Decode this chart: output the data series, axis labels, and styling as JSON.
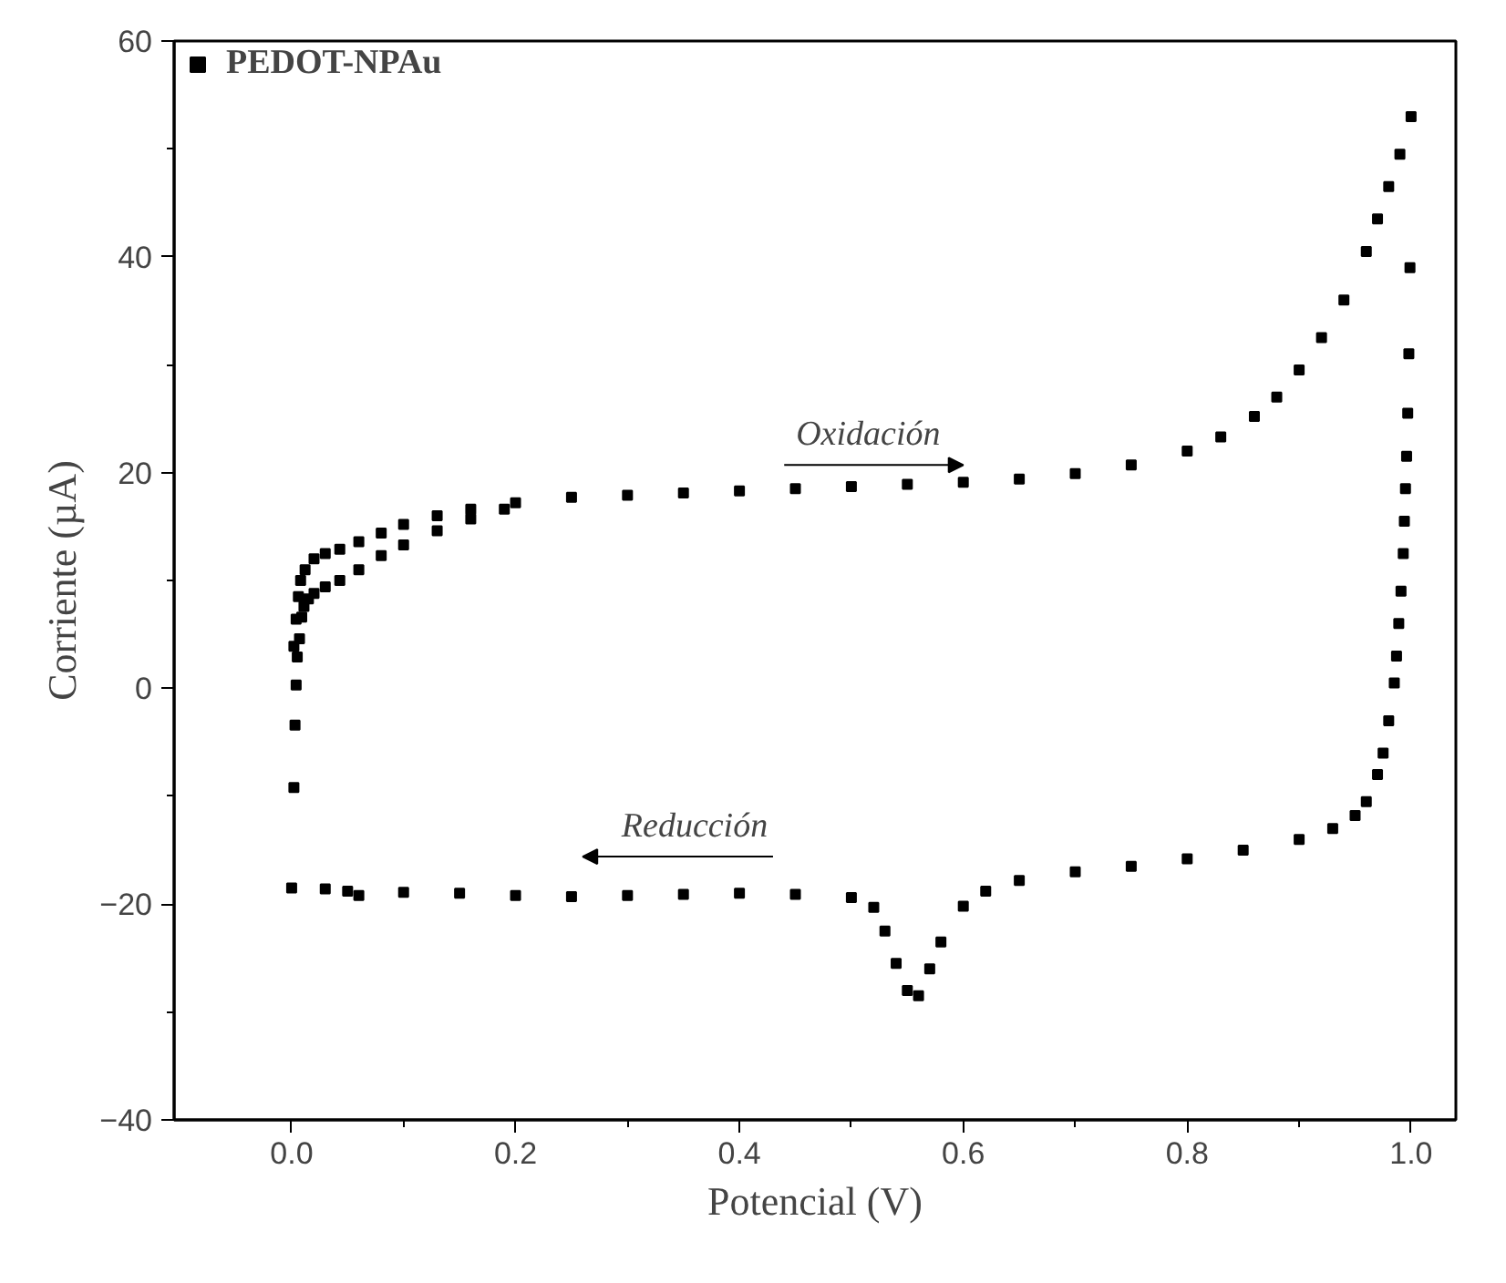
{
  "chart_data": {
    "type": "scatter",
    "xlabel": "Potencial (V)",
    "ylabel": "Corriente (µA)",
    "xlim": [
      -0.105,
      1.04
    ],
    "ylim": [
      -40,
      60
    ],
    "xticks": [
      {
        "value": 0,
        "label": "0.0"
      },
      {
        "value": 0.2,
        "label": "0.2"
      },
      {
        "value": 0.4,
        "label": "0.4"
      },
      {
        "value": 0.6,
        "label": "0.6"
      },
      {
        "value": 0.8,
        "label": "0.8"
      },
      {
        "value": 1,
        "label": "1.0"
      }
    ],
    "yticks": [
      -40,
      -20,
      0,
      20,
      40,
      60
    ],
    "grid": false,
    "legend": "top left",
    "marker": "square",
    "annotations": [
      "Oxidación",
      "Reducción"
    ],
    "series": [
      {
        "name": "PEDOT-NPAu",
        "color": "#000000",
        "x": [
          0.002,
          0.003,
          0.004,
          0.002,
          0.004,
          0.006,
          0.008,
          0.012,
          0.02,
          0.03,
          0.043,
          0.06,
          0.08,
          0.1,
          0.13,
          0.16,
          0.2,
          0.25,
          0.3,
          0.35,
          0.4,
          0.45,
          0.5,
          0.55,
          0.6,
          0.65,
          0.7,
          0.75,
          0.8,
          0.83,
          0.86,
          0.88,
          0.9,
          0.92,
          0.94,
          0.96,
          0.97,
          0.98,
          0.99,
          1.0,
          0.005,
          0.007,
          0.009,
          0.011,
          0.015,
          0.02,
          0.03,
          0.043,
          0.06,
          0.08,
          0.1,
          0.13,
          0.16,
          0.19,
          0.999,
          0.998,
          0.997,
          0.996,
          0.995,
          0.994,
          0.993,
          0.991,
          0.989,
          0.987,
          0.985,
          0.98,
          0.975,
          0.97,
          0.96,
          0.95,
          0.93,
          0.9,
          0.85,
          0.8,
          0.75,
          0.7,
          0.65,
          0.62,
          0.6,
          0.58,
          0.57,
          0.56,
          0.55,
          0.54,
          0.53,
          0.52,
          0.5,
          0.45,
          0.4,
          0.35,
          0.3,
          0.25,
          0.2,
          0.15,
          0.1,
          0.06,
          0.05,
          0.03,
          0.0
        ],
        "values": [
          -9.2,
          -3.4,
          0.3,
          3.9,
          6.4,
          8.5,
          10,
          11,
          12,
          12.5,
          12.9,
          13.6,
          14.4,
          15.2,
          16,
          16.6,
          17.2,
          17.7,
          17.9,
          18.1,
          18.3,
          18.5,
          18.7,
          18.9,
          19.1,
          19.4,
          19.9,
          20.7,
          22,
          23.3,
          25.2,
          27,
          29.5,
          32.5,
          36,
          40.5,
          43.5,
          46.5,
          49.5,
          53,
          2.9,
          4.6,
          6.6,
          7.6,
          8.3,
          8.8,
          9.4,
          10,
          11,
          12.3,
          13.3,
          14.6,
          15.7,
          16.6,
          39,
          31,
          25.5,
          21.5,
          18.5,
          15.5,
          12.5,
          9,
          6,
          3,
          0.5,
          -3,
          -6,
          -8,
          -10.5,
          -11.8,
          -13,
          -14,
          -15,
          -15.8,
          -16.5,
          -17,
          -17.8,
          -18.8,
          -20.2,
          -23.5,
          -26,
          -28.5,
          -28,
          -25.5,
          -22.5,
          -20.3,
          -19.4,
          -19.1,
          -19,
          -19.1,
          -19.2,
          -19.3,
          -19.2,
          -19,
          -18.9,
          -19.2,
          -18.8,
          -18.6,
          -18.5
        ]
      }
    ]
  }
}
